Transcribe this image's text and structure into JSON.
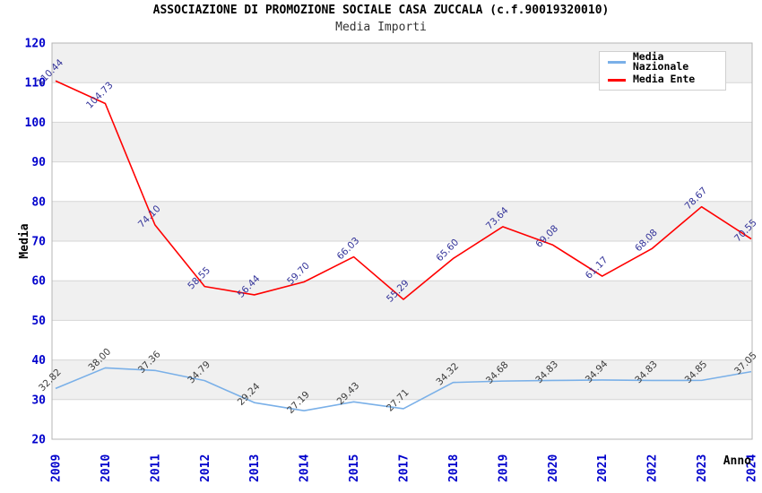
{
  "header": {
    "title": "ASSOCIAZIONE DI PROMOZIONE SOCIALE CASA ZUCCALA (c.f.90019320010)",
    "subtitle": "Media Importi"
  },
  "axes": {
    "y_title": "Media",
    "x_title": "Anno",
    "y_ticks": [
      20,
      30,
      40,
      50,
      60,
      70,
      80,
      90,
      100,
      110,
      120
    ]
  },
  "colors": {
    "axis_tick_label": "#0000cc",
    "band_gray": "#f0f0f0",
    "gridline": "#d6d6d6",
    "plot_border": "#b4b4b4",
    "legend_border": "#cfcfcf",
    "title_text": "#000000",
    "subtitle_text": "#333333"
  },
  "chart_data": {
    "type": "line",
    "title": "ASSOCIAZIONE DI PROMOZIONE SOCIALE CASA ZUCCALA (c.f.90019320010)",
    "subtitle": "Media Importi",
    "xlabel": "Anno",
    "ylabel": "Media",
    "ylim": [
      20,
      120
    ],
    "ytick_step": 10,
    "grid": "horizontal",
    "background_bands": true,
    "legend_position": "top-right",
    "categories": [
      "2009",
      "2010",
      "2011",
      "2012",
      "2013",
      "2014",
      "2015",
      "2017",
      "2018",
      "2019",
      "2020",
      "2021",
      "2022",
      "2023",
      "2024"
    ],
    "series": [
      {
        "name": "Media Nazionale",
        "color": "#7ab0e8",
        "label_color": "#3c3c3c",
        "values": [
          32.82,
          38.0,
          37.36,
          34.79,
          29.24,
          27.19,
          29.43,
          27.71,
          34.32,
          34.68,
          34.83,
          34.94,
          34.83,
          34.85,
          37.05
        ]
      },
      {
        "name": "Media Ente",
        "color": "#ff0000",
        "label_color": "#333399",
        "values": [
          110.44,
          104.73,
          74.1,
          58.55,
          56.44,
          59.7,
          66.03,
          55.29,
          65.6,
          73.64,
          69.08,
          61.17,
          68.08,
          78.67,
          70.55
        ]
      }
    ]
  }
}
